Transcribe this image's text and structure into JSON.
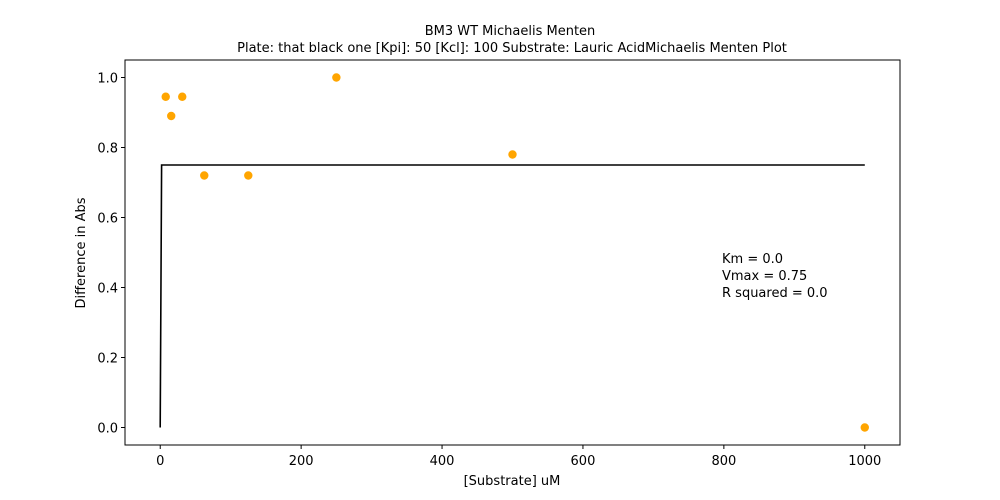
{
  "chart_data": {
    "type": "scatter",
    "title": "BM3 WT Michaelis Menten",
    "subtitle": "Plate: that black one  [Kpi]: 50  [Kcl]: 100  Substrate: Lauric AcidMichaelis Menten Plot",
    "xlabel": "[Substrate] uM",
    "ylabel": "Difference in Abs",
    "xlim": [
      -50,
      1050
    ],
    "ylim": [
      -0.05,
      1.05
    ],
    "xticks": [
      0,
      200,
      400,
      600,
      800,
      1000
    ],
    "yticks": [
      0.0,
      0.2,
      0.4,
      0.6,
      0.8,
      1.0
    ],
    "xtick_labels": [
      "0",
      "200",
      "400",
      "600",
      "800",
      "1000"
    ],
    "ytick_labels": [
      "0.0",
      "0.2",
      "0.4",
      "0.6",
      "0.8",
      "1.0"
    ],
    "grid": false,
    "points": {
      "color": "#ffa500",
      "x": [
        7.8,
        15.6,
        31.25,
        62.5,
        125,
        250,
        500,
        1000
      ],
      "y": [
        0.945,
        0.89,
        0.945,
        0.72,
        0.72,
        1.0,
        0.78,
        0.0
      ]
    },
    "fit": {
      "color": "#000000",
      "km": 0.0,
      "vmax": 0.75,
      "x": [
        0,
        2,
        1000
      ],
      "y": [
        0.0,
        0.75,
        0.75
      ]
    },
    "annotations": [
      "Km = 0.0",
      "Vmax = 0.75",
      "R squared = 0.0"
    ]
  }
}
